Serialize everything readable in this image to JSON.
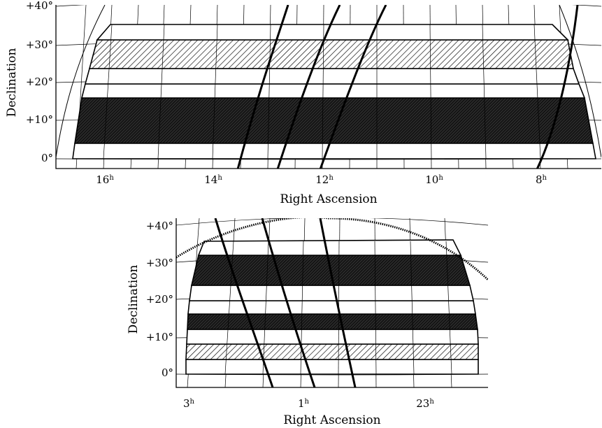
{
  "panels": [
    {
      "id": "top",
      "x_axis_title": "Right Ascension",
      "y_axis_title": "Declination",
      "ra_ticks": [
        {
          "value": 16,
          "text": "16",
          "unit": "h"
        },
        {
          "value": 14,
          "text": "14",
          "unit": "h"
        },
        {
          "value": 12,
          "text": "12",
          "unit": "h"
        },
        {
          "value": 10,
          "text": "10",
          "unit": "h"
        },
        {
          "value": 8,
          "text": "8",
          "unit": "h"
        }
      ],
      "dec_ticks": [
        {
          "value": 40,
          "text": "+40°"
        },
        {
          "value": 30,
          "text": "+30°"
        },
        {
          "value": 20,
          "text": "+20°"
        },
        {
          "value": 10,
          "text": "+10°"
        },
        {
          "value": 0,
          "text": "0°"
        }
      ],
      "survey_strips": [
        {
          "dec_range": [
            3,
            16
          ],
          "fill": "dense-hatch"
        },
        {
          "dec_range": [
            16,
            20
          ],
          "fill": "none"
        },
        {
          "dec_range": [
            20,
            24
          ],
          "fill": "none"
        },
        {
          "dec_range": [
            24,
            32
          ],
          "fill": "diagonal-hatch"
        },
        {
          "dec_range": [
            32,
            36
          ],
          "fill": "none"
        }
      ]
    },
    {
      "id": "bottom",
      "x_axis_title": "Right Ascension",
      "y_axis_title": "Declination",
      "ra_ticks": [
        {
          "value": 3,
          "text": "3",
          "unit": "h"
        },
        {
          "value": 1,
          "text": "1",
          "unit": "h"
        },
        {
          "value": 23,
          "text": "23",
          "unit": "h"
        }
      ],
      "dec_ticks": [
        {
          "value": 40,
          "text": "+40°"
        },
        {
          "value": 30,
          "text": "+30°"
        },
        {
          "value": 20,
          "text": "+20°"
        },
        {
          "value": 10,
          "text": "+10°"
        },
        {
          "value": 0,
          "text": "0°"
        }
      ],
      "survey_strips": [
        {
          "dec_range": [
            3,
            8
          ],
          "fill": "none"
        },
        {
          "dec_range": [
            8,
            12
          ],
          "fill": "diagonal-hatch"
        },
        {
          "dec_range": [
            12,
            16
          ],
          "fill": "none"
        },
        {
          "dec_range": [
            16,
            20
          ],
          "fill": "dense-hatch"
        },
        {
          "dec_range": [
            20,
            24
          ],
          "fill": "none"
        },
        {
          "dec_range": [
            24,
            32
          ],
          "fill": "none"
        },
        {
          "dec_range": [
            32,
            36
          ],
          "fill": "dense-hatch"
        }
      ]
    }
  ]
}
